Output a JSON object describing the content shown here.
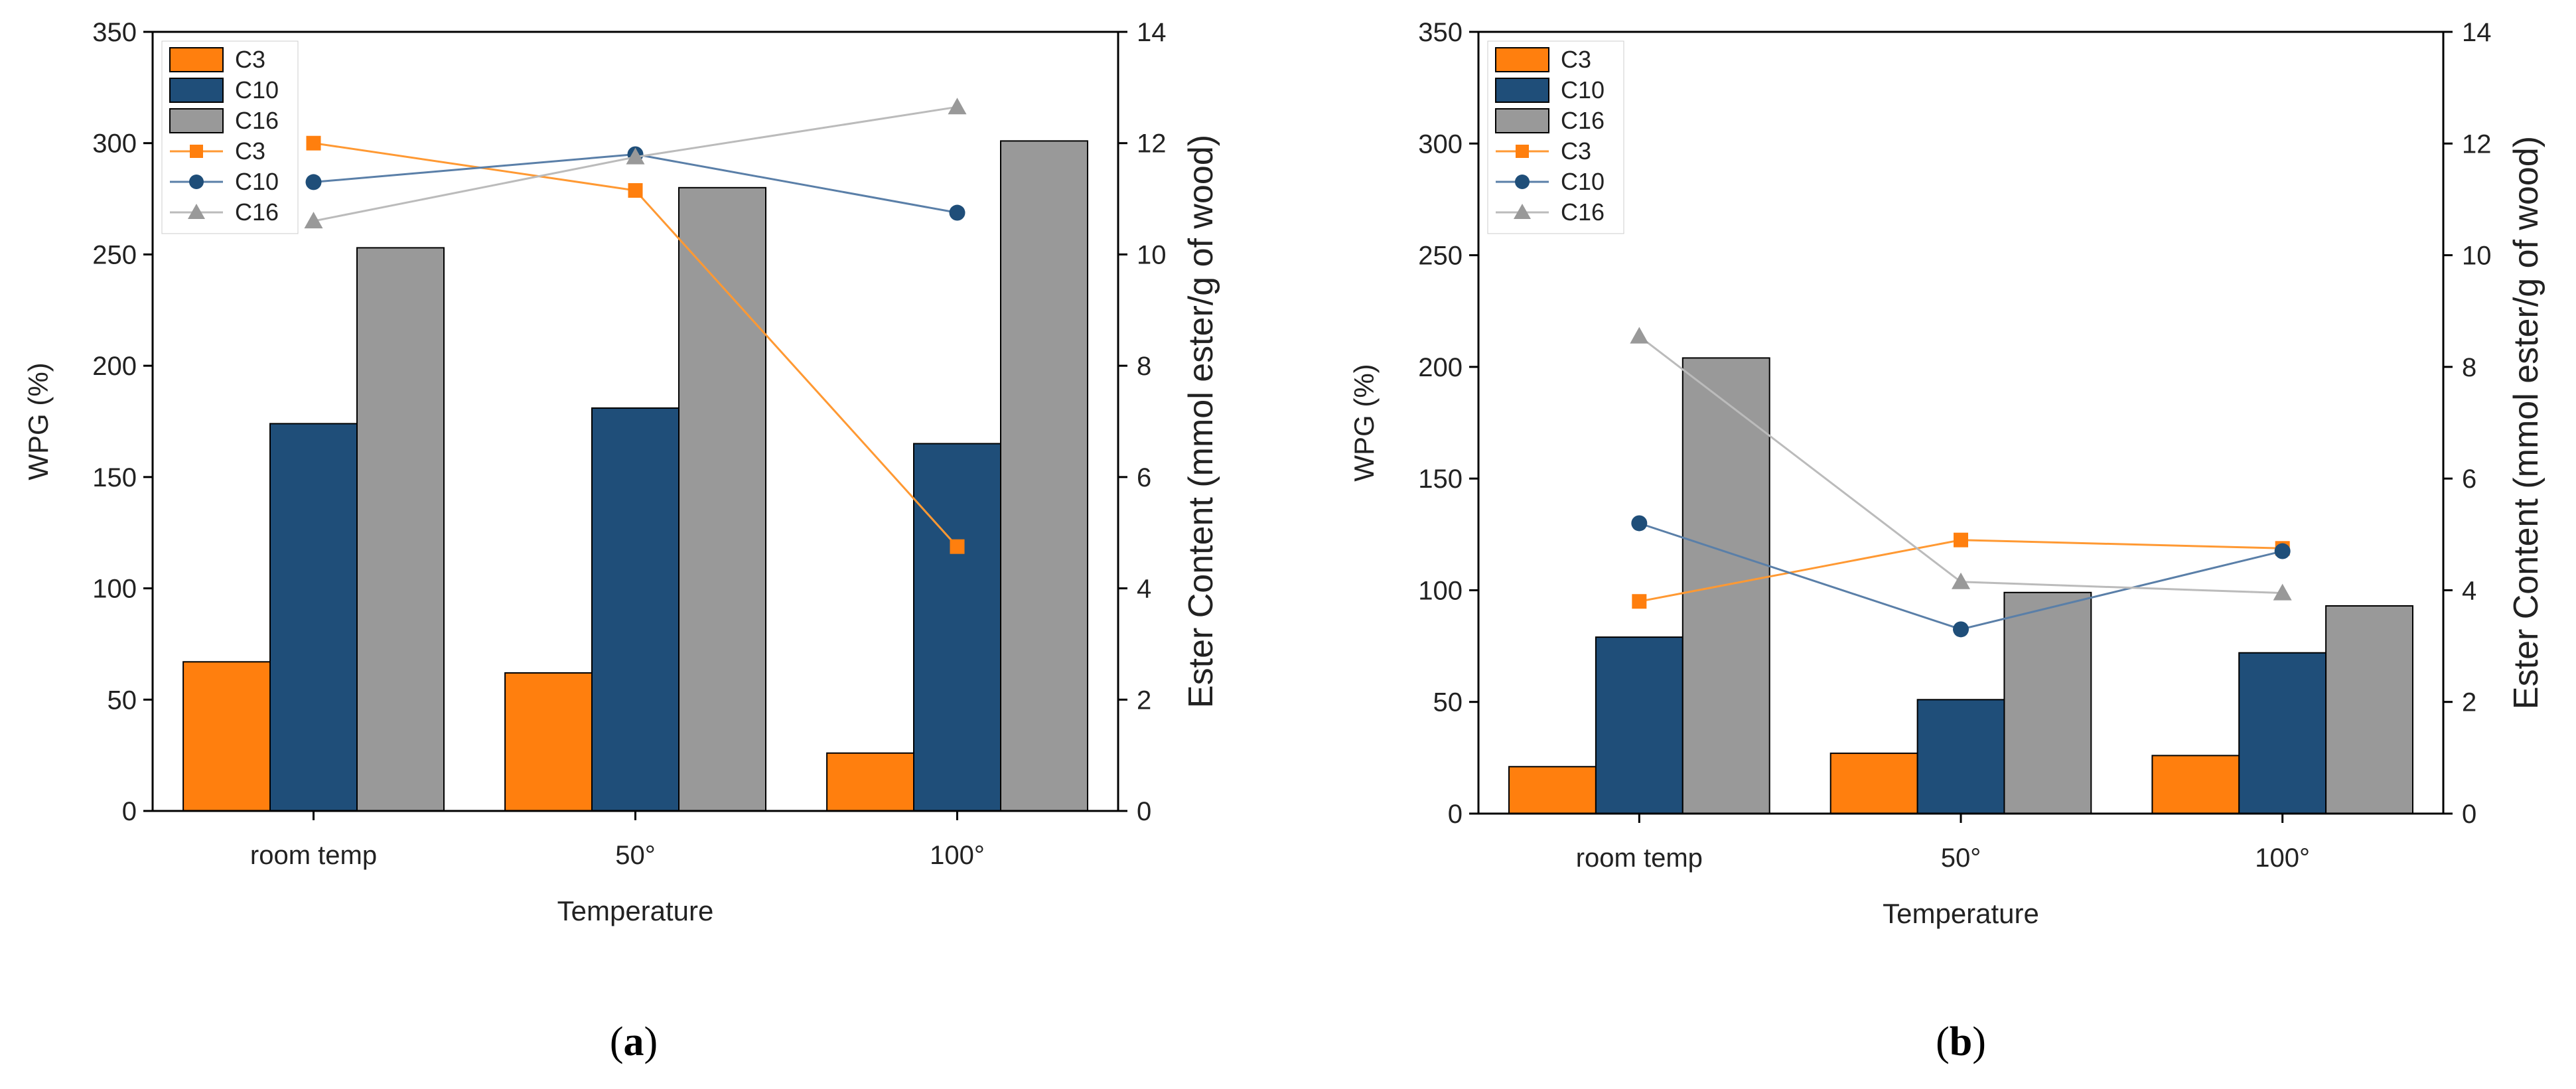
{
  "colors": {
    "C3": "#ff7f0e",
    "C10": "#1f4e79",
    "C16": "#999999",
    "C16_line": "#bbbbbb",
    "C3_line": "#ff9933",
    "C10_line": "#5a7fa8"
  },
  "chart_data": [
    {
      "type": "bar",
      "panel": "a",
      "panel_label": {
        "open": "(",
        "letter": "a",
        "close": ")"
      },
      "xlabel": "Temperature",
      "ylabel": "WPG (%)",
      "ylabel_right": "Ester Content (mmol ester/g of wood)",
      "categories": [
        "room temp",
        "50°",
        "100°"
      ],
      "ylim": [
        0,
        350
      ],
      "yticks": [
        0,
        50,
        100,
        150,
        200,
        250,
        300,
        350
      ],
      "ylim_right": [
        0,
        14
      ],
      "yticks_right": [
        0,
        2,
        4,
        6,
        8,
        10,
        12,
        14
      ],
      "legend_position": "top-left",
      "bar_series": [
        {
          "name": "C3",
          "values": [
            67,
            62,
            26
          ],
          "color_key": "C3"
        },
        {
          "name": "C10",
          "values": [
            174,
            181,
            165
          ],
          "color_key": "C10"
        },
        {
          "name": "C16",
          "values": [
            253,
            280,
            301
          ],
          "color_key": "C16"
        }
      ],
      "line_series": [
        {
          "name": "C3",
          "marker": "square",
          "values": [
            12.0,
            11.15,
            4.75
          ],
          "color_key": "C3"
        },
        {
          "name": "C10",
          "marker": "circle",
          "values": [
            11.3,
            11.8,
            10.75
          ],
          "color_key": "C10"
        },
        {
          "name": "C16",
          "marker": "triangle",
          "values": [
            10.6,
            11.75,
            12.65
          ],
          "color_key": "C16"
        }
      ]
    },
    {
      "type": "bar",
      "panel": "b",
      "panel_label": {
        "open": "(",
        "letter": "b",
        "close": ")"
      },
      "xlabel": "Temperature",
      "ylabel": "WPG (%)",
      "ylabel_right": "Ester Content (mmol ester/g of wood)",
      "categories": [
        "room temp",
        "50°",
        "100°"
      ],
      "ylim": [
        0,
        350
      ],
      "yticks": [
        0,
        50,
        100,
        150,
        200,
        250,
        300,
        350
      ],
      "ylim_right": [
        0,
        14
      ],
      "yticks_right": [
        0,
        2,
        4,
        6,
        8,
        10,
        12,
        14
      ],
      "legend_position": "top-left",
      "bar_series": [
        {
          "name": "C3",
          "values": [
            21,
            27,
            26
          ],
          "color_key": "C3"
        },
        {
          "name": "C10",
          "values": [
            79,
            51,
            72
          ],
          "color_key": "C10"
        },
        {
          "name": "C16",
          "values": [
            204,
            99,
            93
          ],
          "color_key": "C16"
        }
      ],
      "line_series": [
        {
          "name": "C3",
          "marker": "square",
          "values": [
            3.8,
            4.9,
            4.75
          ],
          "color_key": "C3"
        },
        {
          "name": "C10",
          "marker": "circle",
          "values": [
            5.2,
            3.3,
            4.7
          ],
          "color_key": "C10"
        },
        {
          "name": "C16",
          "marker": "triangle",
          "values": [
            8.55,
            4.15,
            3.95
          ],
          "color_key": "C16"
        }
      ]
    }
  ]
}
